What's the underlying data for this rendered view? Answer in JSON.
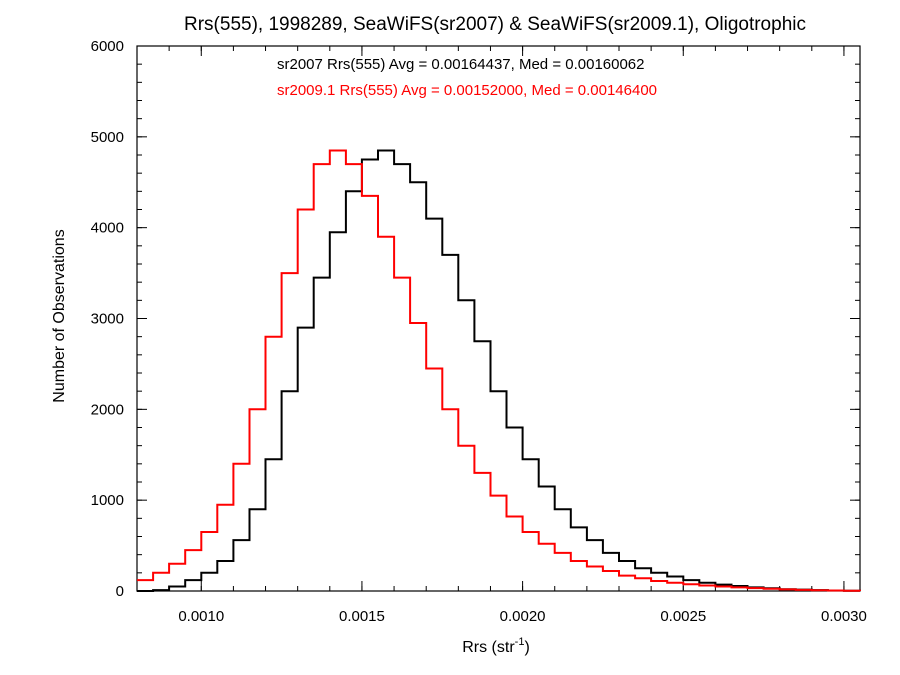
{
  "chart_data": {
    "type": "histogram",
    "title": "Rrs(555), 1998289, SeaWiFS(sr2007) & SeaWiFS(sr2009.1), Oligotrophic",
    "xlabel_base": "Rrs (str",
    "xlabel_sup": "-1",
    "xlabel_close": ")",
    "ylabel": "Number of Observations",
    "xlim": [
      0.0008,
      0.00305
    ],
    "ylim": [
      0,
      6000
    ],
    "x_ticks": [
      "0.0010",
      "0.0015",
      "0.0020",
      "0.0025",
      "0.0030"
    ],
    "x_tick_values": [
      0.001,
      0.0015,
      0.002,
      0.0025,
      0.003
    ],
    "y_ticks": [
      "0",
      "1000",
      "2000",
      "3000",
      "4000",
      "5000",
      "6000"
    ],
    "y_tick_values": [
      0,
      1000,
      2000,
      3000,
      4000,
      5000,
      6000
    ],
    "grid": false,
    "legend_position": "top-center",
    "series": [
      {
        "name": "sr2007",
        "color": "#000000",
        "stats_text": "sr2007 Rrs(555) Avg = 0.00164437, Med = 0.00160062",
        "points": [
          [
            0.0008,
            0
          ],
          [
            0.00085,
            10
          ],
          [
            0.0009,
            50
          ],
          [
            0.00095,
            120
          ],
          [
            0.001,
            200
          ],
          [
            0.00105,
            330
          ],
          [
            0.0011,
            560
          ],
          [
            0.00115,
            900
          ],
          [
            0.0012,
            1450
          ],
          [
            0.00125,
            2200
          ],
          [
            0.0013,
            2900
          ],
          [
            0.00135,
            3450
          ],
          [
            0.0014,
            3950
          ],
          [
            0.00145,
            4400
          ],
          [
            0.0015,
            4750
          ],
          [
            0.00155,
            4850
          ],
          [
            0.0016,
            4700
          ],
          [
            0.00165,
            4500
          ],
          [
            0.0017,
            4100
          ],
          [
            0.00175,
            3700
          ],
          [
            0.0018,
            3200
          ],
          [
            0.00185,
            2750
          ],
          [
            0.0019,
            2200
          ],
          [
            0.00195,
            1800
          ],
          [
            0.002,
            1450
          ],
          [
            0.00205,
            1150
          ],
          [
            0.0021,
            900
          ],
          [
            0.00215,
            700
          ],
          [
            0.0022,
            560
          ],
          [
            0.00225,
            420
          ],
          [
            0.0023,
            330
          ],
          [
            0.00235,
            250
          ],
          [
            0.0024,
            200
          ],
          [
            0.00245,
            160
          ],
          [
            0.0025,
            120
          ],
          [
            0.00255,
            90
          ],
          [
            0.0026,
            70
          ],
          [
            0.00265,
            55
          ],
          [
            0.0027,
            40
          ],
          [
            0.00275,
            30
          ],
          [
            0.0028,
            20
          ],
          [
            0.00285,
            15
          ],
          [
            0.0029,
            10
          ],
          [
            0.00295,
            5
          ],
          [
            0.003,
            3
          ],
          [
            0.00305,
            0
          ]
        ]
      },
      {
        "name": "sr2009.1",
        "color": "#ff0000",
        "stats_text": "sr2009.1 Rrs(555) Avg = 0.00152000, Med = 0.00146400",
        "points": [
          [
            0.0008,
            120
          ],
          [
            0.00085,
            200
          ],
          [
            0.0009,
            300
          ],
          [
            0.00095,
            450
          ],
          [
            0.001,
            650
          ],
          [
            0.00105,
            950
          ],
          [
            0.0011,
            1400
          ],
          [
            0.00115,
            2000
          ],
          [
            0.0012,
            2800
          ],
          [
            0.00125,
            3500
          ],
          [
            0.0013,
            4200
          ],
          [
            0.00135,
            4700
          ],
          [
            0.0014,
            4850
          ],
          [
            0.00145,
            4700
          ],
          [
            0.0015,
            4350
          ],
          [
            0.00155,
            3900
          ],
          [
            0.0016,
            3450
          ],
          [
            0.00165,
            2950
          ],
          [
            0.0017,
            2450
          ],
          [
            0.00175,
            2000
          ],
          [
            0.0018,
            1600
          ],
          [
            0.00185,
            1300
          ],
          [
            0.0019,
            1050
          ],
          [
            0.00195,
            820
          ],
          [
            0.002,
            650
          ],
          [
            0.00205,
            520
          ],
          [
            0.0021,
            420
          ],
          [
            0.00215,
            330
          ],
          [
            0.0022,
            270
          ],
          [
            0.00225,
            220
          ],
          [
            0.0023,
            170
          ],
          [
            0.00235,
            140
          ],
          [
            0.0024,
            110
          ],
          [
            0.00245,
            90
          ],
          [
            0.0025,
            75
          ],
          [
            0.00255,
            60
          ],
          [
            0.0026,
            50
          ],
          [
            0.00265,
            40
          ],
          [
            0.0027,
            32
          ],
          [
            0.00275,
            25
          ],
          [
            0.0028,
            18
          ],
          [
            0.00285,
            12
          ],
          [
            0.0029,
            8
          ],
          [
            0.00295,
            5
          ],
          [
            0.003,
            3
          ],
          [
            0.00305,
            0
          ]
        ]
      }
    ]
  }
}
